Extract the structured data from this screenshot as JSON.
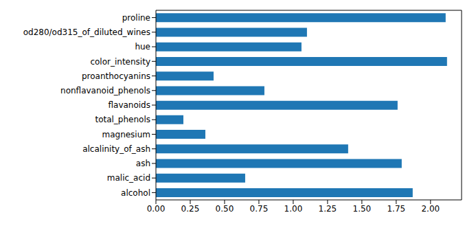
{
  "chart_data": {
    "type": "bar",
    "orientation": "horizontal",
    "categories": [
      "alcohol",
      "malic_acid",
      "ash",
      "alcalinity_of_ash",
      "magnesium",
      "total_phenols",
      "flavanoids",
      "nonflavanoid_phenols",
      "proanthocyanins",
      "color_intensity",
      "hue",
      "od280/od315_of_diluted_wines",
      "proline"
    ],
    "values": [
      1.87,
      0.65,
      1.79,
      1.4,
      0.36,
      0.2,
      1.76,
      0.79,
      0.42,
      2.12,
      1.06,
      1.1,
      2.11
    ],
    "color": "#1f77b4",
    "xlim": [
      0,
      2.226
    ],
    "xticks": [
      {
        "value": 0,
        "label": "0.00"
      },
      {
        "value": 0.25,
        "label": "0.25"
      },
      {
        "value": 0.5,
        "label": "0.50"
      },
      {
        "value": 0.75,
        "label": "0.75"
      },
      {
        "value": 1,
        "label": "1.00"
      },
      {
        "value": 1.25,
        "label": "1.25"
      },
      {
        "value": 1.5,
        "label": "1.50"
      },
      {
        "value": 1.75,
        "label": "1.75"
      },
      {
        "value": 2,
        "label": "2.00"
      }
    ],
    "grid": false
  }
}
